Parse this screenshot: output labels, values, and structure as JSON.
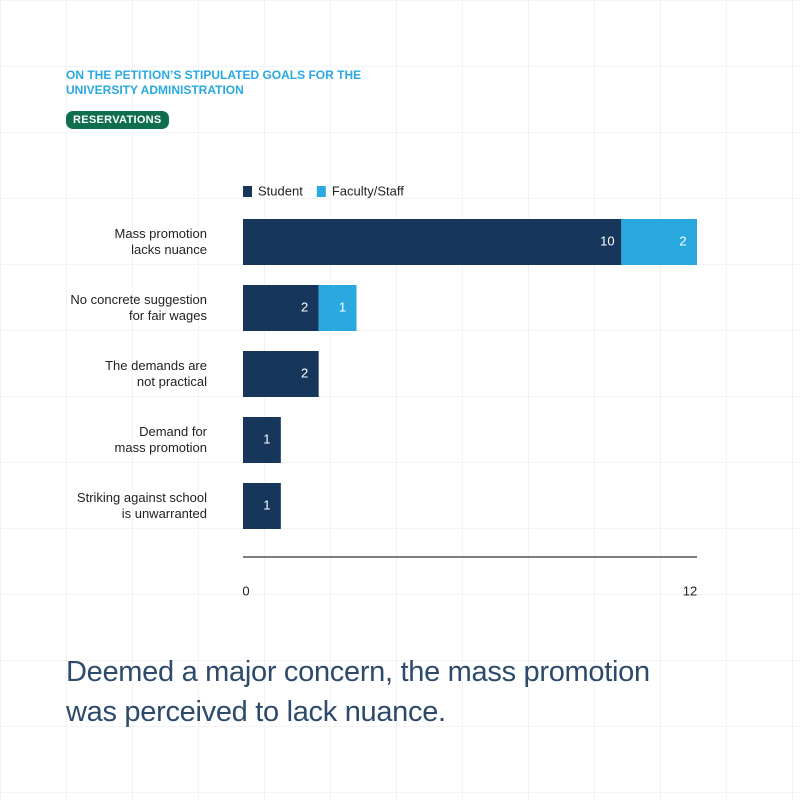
{
  "title": "ON THE PETITION’S STIPULATED GOALS FOR THE UNIVERSITY ADMINISTRATION",
  "badge": "RESERVATIONS",
  "caption": "Deemed a major concern, the mass promotion was perceived to lack nuance.",
  "chart_data": {
    "type": "stacked-bar-horizontal",
    "categories": [
      "Mass promotion\nlacks nuance",
      "No concrete suggestion\nfor fair wages",
      "The demands are\nnot practical",
      "Demand for\nmass promotion",
      "Striking against school\nis unwarranted"
    ],
    "series": [
      {
        "name": "Student",
        "color": "#16365c",
        "values": [
          10,
          2,
          2,
          1,
          1
        ]
      },
      {
        "name": "Faculty/Staff",
        "color": "#29a9e0",
        "values": [
          2,
          1,
          null,
          null,
          null
        ]
      }
    ],
    "xlim": [
      0,
      12
    ],
    "xticks": [
      0,
      12
    ]
  }
}
